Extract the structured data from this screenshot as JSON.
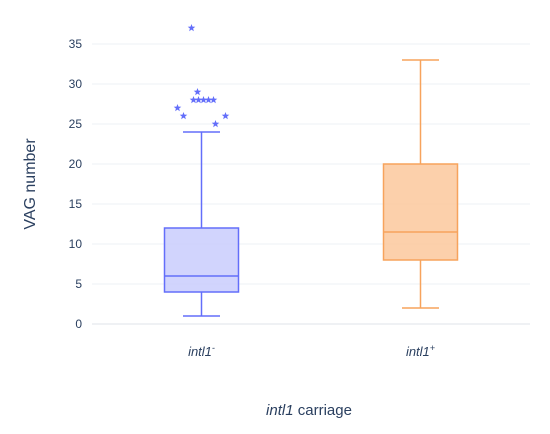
{
  "chart_data": {
    "type": "box",
    "xlabel_italic": "intl1",
    "xlabel_rest": " carriage",
    "ylabel": "VAG number",
    "ylim": [
      0,
      37
    ],
    "yticks": [
      0,
      5,
      10,
      15,
      20,
      25,
      30,
      35
    ],
    "grid": true,
    "series": [
      {
        "category_base": "intl1",
        "category_sup": "-",
        "color": "#636efa",
        "fill": "#c9ccfd",
        "min": 1,
        "q1": 4,
        "median": 6,
        "q3": 12,
        "max": 24,
        "outliers": [
          25,
          26,
          26,
          27,
          28,
          28,
          28,
          28,
          28,
          29,
          37
        ]
      },
      {
        "category_base": "intl1",
        "category_sup": "+",
        "color": "#f7a35c",
        "fill": "#fbc89c",
        "min": 2,
        "q1": 8,
        "median": 11.5,
        "q3": 20,
        "max": 33,
        "outliers": []
      }
    ]
  }
}
